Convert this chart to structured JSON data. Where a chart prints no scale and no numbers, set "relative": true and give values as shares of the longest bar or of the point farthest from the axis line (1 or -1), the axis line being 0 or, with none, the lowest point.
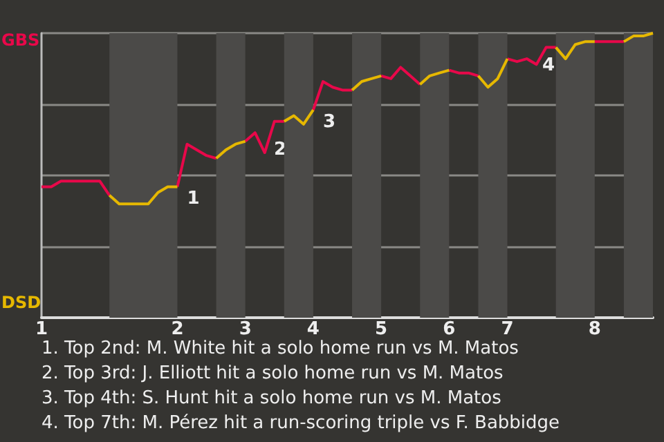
{
  "chart_data": {
    "type": "line",
    "relative": true,
    "categories": [
      "1",
      null,
      null,
      null,
      null,
      null,
      null,
      null,
      null,
      null,
      null,
      null,
      null,
      null,
      "2",
      null,
      null,
      null,
      null,
      null,
      null,
      "3",
      null,
      null,
      null,
      null,
      null,
      null,
      "4",
      null,
      null,
      null,
      null,
      null,
      null,
      "5",
      null,
      null,
      null,
      null,
      null,
      null,
      "6",
      null,
      null,
      null,
      null,
      null,
      "7",
      null,
      null,
      null,
      null,
      null,
      null,
      null,
      null,
      "8",
      null,
      null,
      null,
      null,
      null,
      null
    ],
    "grid": "y",
    "series": [
      {
        "color": "#e8084a",
        "values": [
          0.46,
          0.46,
          0.48,
          0.48,
          0.48,
          0.48,
          0.48,
          0.43,
          null,
          null,
          null,
          null,
          null,
          null,
          0.46,
          0.61,
          0.59,
          0.57,
          0.56,
          null,
          null,
          0.62,
          0.65,
          0.58,
          0.69,
          0.69,
          null,
          null,
          0.73,
          0.83,
          0.81,
          0.8,
          0.8,
          null,
          null,
          0.85,
          0.84,
          0.88,
          0.85,
          0.82,
          null,
          null,
          0.87,
          0.86,
          0.86,
          0.85,
          null,
          null,
          0.91,
          0.9,
          0.91,
          0.89,
          0.95,
          0.95,
          null,
          null,
          null,
          0.97,
          0.97,
          0.97,
          0.97,
          null,
          null,
          null
        ]
      },
      {
        "color": "#e6b800",
        "values": [
          null,
          null,
          null,
          null,
          null,
          null,
          null,
          0.43,
          0.4,
          0.4,
          0.4,
          0.4,
          0.44,
          0.46,
          0.46,
          null,
          null,
          null,
          0.56,
          0.59,
          0.61,
          0.62,
          null,
          null,
          null,
          0.69,
          0.71,
          0.68,
          0.73,
          null,
          null,
          null,
          0.8,
          0.83,
          0.84,
          0.85,
          null,
          null,
          null,
          0.82,
          0.85,
          0.86,
          0.87,
          null,
          null,
          0.85,
          0.81,
          0.84,
          0.91,
          null,
          null,
          null,
          null,
          0.95,
          0.91,
          0.96,
          0.97,
          0.97,
          null,
          null,
          0.97,
          0.99,
          0.99,
          1
        ]
      }
    ],
    "annotations": [
      "GBS",
      "DSD",
      "2",
      "4",
      {
        "text": "1",
        "x": "2",
        "y": 0.46
      },
      {
        "text": "3",
        "x": "4",
        "y": 0.73
      },
      "1. Top 2nd: M. White hit a solo home run vs M. Matos",
      "2. Top 3rd: J. Elliott hit a solo home run vs M. Matos",
      "3. Top 4th: S. Hunt hit a solo home run vs M. Matos",
      "4. Top 7th: M. Pérez hit a run-scoring triple vs F. Babbidge"
    ]
  }
}
